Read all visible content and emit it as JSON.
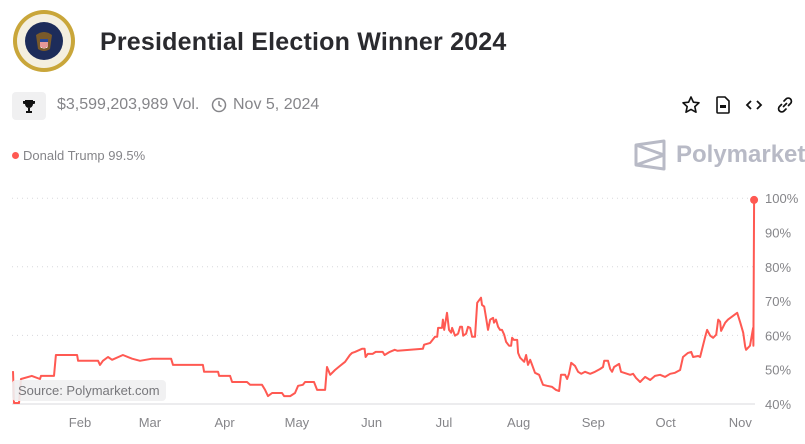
{
  "header": {
    "title": "Presidential Election Winner 2024",
    "volume": "$3,599,203,989 Vol.",
    "date": "Nov 5, 2024",
    "icons": [
      "trophy-icon",
      "clock-icon",
      "star-icon",
      "document-icon",
      "embed-code-icon",
      "link-icon"
    ]
  },
  "brand": {
    "name": "Polymarket"
  },
  "legend": {
    "label": "Donald Trump 99.5%"
  },
  "source": "Source: Polymarket.com",
  "colors": {
    "series": "#ff5952",
    "grid": "#d8d8dc",
    "axis_text": "#858589"
  },
  "chart_data": {
    "type": "line",
    "title": "Presidential Election Winner 2024",
    "xlabel": "",
    "ylabel": "",
    "x_unit": "day of 2024 (0 = Jan 1)",
    "xlim": [
      3,
      311
    ],
    "ylim": [
      40,
      100
    ],
    "yticks": [
      40,
      50,
      60,
      70,
      80,
      90,
      100
    ],
    "ytick_labels": [
      "40%",
      "50%",
      "60%",
      "70%",
      "80%",
      "90%",
      "100%"
    ],
    "xticks": [
      31,
      60,
      91,
      121,
      152,
      182,
      213,
      244,
      274,
      305
    ],
    "xtick_labels": [
      "Feb",
      "Mar",
      "Apr",
      "May",
      "Jun",
      "Jul",
      "Aug",
      "Sep",
      "Oct",
      "Nov"
    ],
    "grid": true,
    "legend_position": "top-left",
    "series": [
      {
        "name": "Donald Trump",
        "last_value": 99.5,
        "points": [
          [
            3.2,
            49.6
          ],
          [
            3.6,
            40.3
          ],
          [
            5.7,
            40.3
          ],
          [
            6.5,
            47.3
          ],
          [
            11,
            48.2
          ],
          [
            14.4,
            47.3
          ],
          [
            14.8,
            48.2
          ],
          [
            20.2,
            48.2
          ],
          [
            21,
            54.3
          ],
          [
            29.8,
            54.3
          ],
          [
            30.2,
            52.6
          ],
          [
            38.5,
            52.6
          ],
          [
            39.3,
            51.4
          ],
          [
            40.5,
            52.6
          ],
          [
            42.6,
            53.7
          ],
          [
            44.3,
            52.9
          ],
          [
            48.8,
            54.3
          ],
          [
            52.6,
            53.2
          ],
          [
            55.9,
            52.6
          ],
          [
            60.9,
            53.2
          ],
          [
            68.8,
            53.2
          ],
          [
            69.6,
            51.4
          ],
          [
            82,
            51.4
          ],
          [
            82.5,
            49.4
          ],
          [
            88.3,
            49.4
          ],
          [
            88.7,
            48.2
          ],
          [
            93.3,
            48.2
          ],
          [
            94.1,
            46.4
          ],
          [
            100.3,
            46.4
          ],
          [
            101.6,
            45.6
          ],
          [
            106.5,
            45.6
          ],
          [
            107.8,
            44.1
          ],
          [
            109,
            42.3
          ],
          [
            110.7,
            43.2
          ],
          [
            114.8,
            43.2
          ],
          [
            115.7,
            42.3
          ],
          [
            118.2,
            42.3
          ],
          [
            120.2,
            43.2
          ],
          [
            121.5,
            45.3
          ],
          [
            123.5,
            45.6
          ],
          [
            124.4,
            46.4
          ],
          [
            128.1,
            46.4
          ],
          [
            129.4,
            44.1
          ],
          [
            132.7,
            44.1
          ],
          [
            133.5,
            50.8
          ],
          [
            134.8,
            48.5
          ],
          [
            136.8,
            49.9
          ],
          [
            138.9,
            51.1
          ],
          [
            141,
            52.3
          ],
          [
            143,
            54.3
          ],
          [
            143.9,
            54.9
          ],
          [
            145.1,
            55.2
          ],
          [
            148,
            56.1
          ],
          [
            149.1,
            56.1
          ],
          [
            149.5,
            53.7
          ],
          [
            150.4,
            54.6
          ],
          [
            152.4,
            54.6
          ],
          [
            153.7,
            55.2
          ],
          [
            156.6,
            55.2
          ],
          [
            157.4,
            54.3
          ],
          [
            159.5,
            55.2
          ],
          [
            161.6,
            55.8
          ],
          [
            162.8,
            55.5
          ],
          [
            173.3,
            56.1
          ],
          [
            173.8,
            57.3
          ],
          [
            176.3,
            57.8
          ],
          [
            178.3,
            59.6
          ],
          [
            179.2,
            59.6
          ],
          [
            179.6,
            62.2
          ],
          [
            181.2,
            62.2
          ],
          [
            181.6,
            64.6
          ],
          [
            182.1,
            61.6
          ],
          [
            183.3,
            66.6
          ],
          [
            184.1,
            61.6
          ],
          [
            185,
            60.8
          ],
          [
            185.4,
            62.2
          ],
          [
            186.6,
            59.9
          ],
          [
            187.9,
            60.5
          ],
          [
            188.7,
            62.5
          ],
          [
            189.5,
            62.5
          ],
          [
            190,
            59.9
          ],
          [
            191.2,
            60.5
          ],
          [
            192,
            62.5
          ],
          [
            192.9,
            62.2
          ],
          [
            193.7,
            59.6
          ],
          [
            194.9,
            59.6
          ],
          [
            195.8,
            69.5
          ],
          [
            197.4,
            71
          ],
          [
            197.8,
            68.9
          ],
          [
            198.7,
            68.4
          ],
          [
            199.5,
            65.1
          ],
          [
            200.3,
            61.6
          ],
          [
            201.2,
            64.6
          ],
          [
            202.4,
            65.1
          ],
          [
            202.8,
            63.7
          ],
          [
            203.6,
            64.6
          ],
          [
            204.5,
            62.5
          ],
          [
            205.3,
            61.6
          ],
          [
            206.1,
            61.6
          ],
          [
            207,
            60.2
          ],
          [
            207.8,
            58.1
          ],
          [
            209,
            57
          ],
          [
            209.9,
            57
          ],
          [
            210.3,
            59.3
          ],
          [
            211.1,
            58.7
          ],
          [
            212.4,
            58.7
          ],
          [
            212.8,
            54.9
          ],
          [
            213.6,
            53.5
          ],
          [
            215.3,
            52.3
          ],
          [
            216.1,
            54.3
          ],
          [
            216.9,
            51.4
          ],
          [
            217.8,
            52.9
          ],
          [
            218.6,
            51.4
          ],
          [
            219.8,
            49.1
          ],
          [
            221.5,
            48.5
          ],
          [
            223.1,
            45.6
          ],
          [
            224.8,
            45.3
          ],
          [
            226.9,
            45
          ],
          [
            228.5,
            44.1
          ],
          [
            229.8,
            43.8
          ],
          [
            230.6,
            48.5
          ],
          [
            232.3,
            48.5
          ],
          [
            233.1,
            47.3
          ],
          [
            233.9,
            48.8
          ],
          [
            234.8,
            52
          ],
          [
            236.4,
            51.1
          ],
          [
            237.7,
            49.4
          ],
          [
            239,
            48.8
          ],
          [
            240.6,
            49.4
          ],
          [
            242.7,
            48.8
          ],
          [
            244.7,
            49.4
          ],
          [
            246.8,
            50.2
          ],
          [
            248,
            50.8
          ],
          [
            248.5,
            52.6
          ],
          [
            250.1,
            52.6
          ],
          [
            251,
            50.2
          ],
          [
            251.8,
            49.4
          ],
          [
            252.6,
            50.8
          ],
          [
            254.7,
            51.7
          ],
          [
            255.5,
            49.4
          ],
          [
            259.3,
            48.5
          ],
          [
            260.5,
            48.8
          ],
          [
            261.7,
            47.6
          ],
          [
            263.4,
            46.4
          ],
          [
            265.5,
            47.9
          ],
          [
            267.6,
            47
          ],
          [
            269.6,
            48.2
          ],
          [
            271.7,
            48.5
          ],
          [
            273.8,
            47.9
          ],
          [
            275.9,
            48.8
          ],
          [
            277.9,
            49.1
          ],
          [
            280,
            49.9
          ],
          [
            281.2,
            53.7
          ],
          [
            283.3,
            54.9
          ],
          [
            284.6,
            55.2
          ],
          [
            285.4,
            53.7
          ],
          [
            287.5,
            54
          ],
          [
            288.3,
            53.7
          ],
          [
            290.4,
            59.6
          ],
          [
            291.2,
            61.6
          ],
          [
            292.5,
            59.9
          ],
          [
            293.7,
            59.3
          ],
          [
            295,
            60.2
          ],
          [
            295.8,
            64.6
          ],
          [
            296.6,
            64
          ],
          [
            297,
            61.3
          ],
          [
            298.7,
            63.7
          ],
          [
            299.9,
            64.6
          ],
          [
            302,
            65.7
          ],
          [
            303.7,
            66.6
          ],
          [
            305,
            63.7
          ],
          [
            306.2,
            60.8
          ],
          [
            307,
            56.7
          ],
          [
            307.4,
            55.8
          ],
          [
            309,
            57
          ],
          [
            310.3,
            62.2
          ],
          [
            310.4,
            57
          ],
          [
            310.7,
            99.5
          ]
        ]
      }
    ]
  }
}
